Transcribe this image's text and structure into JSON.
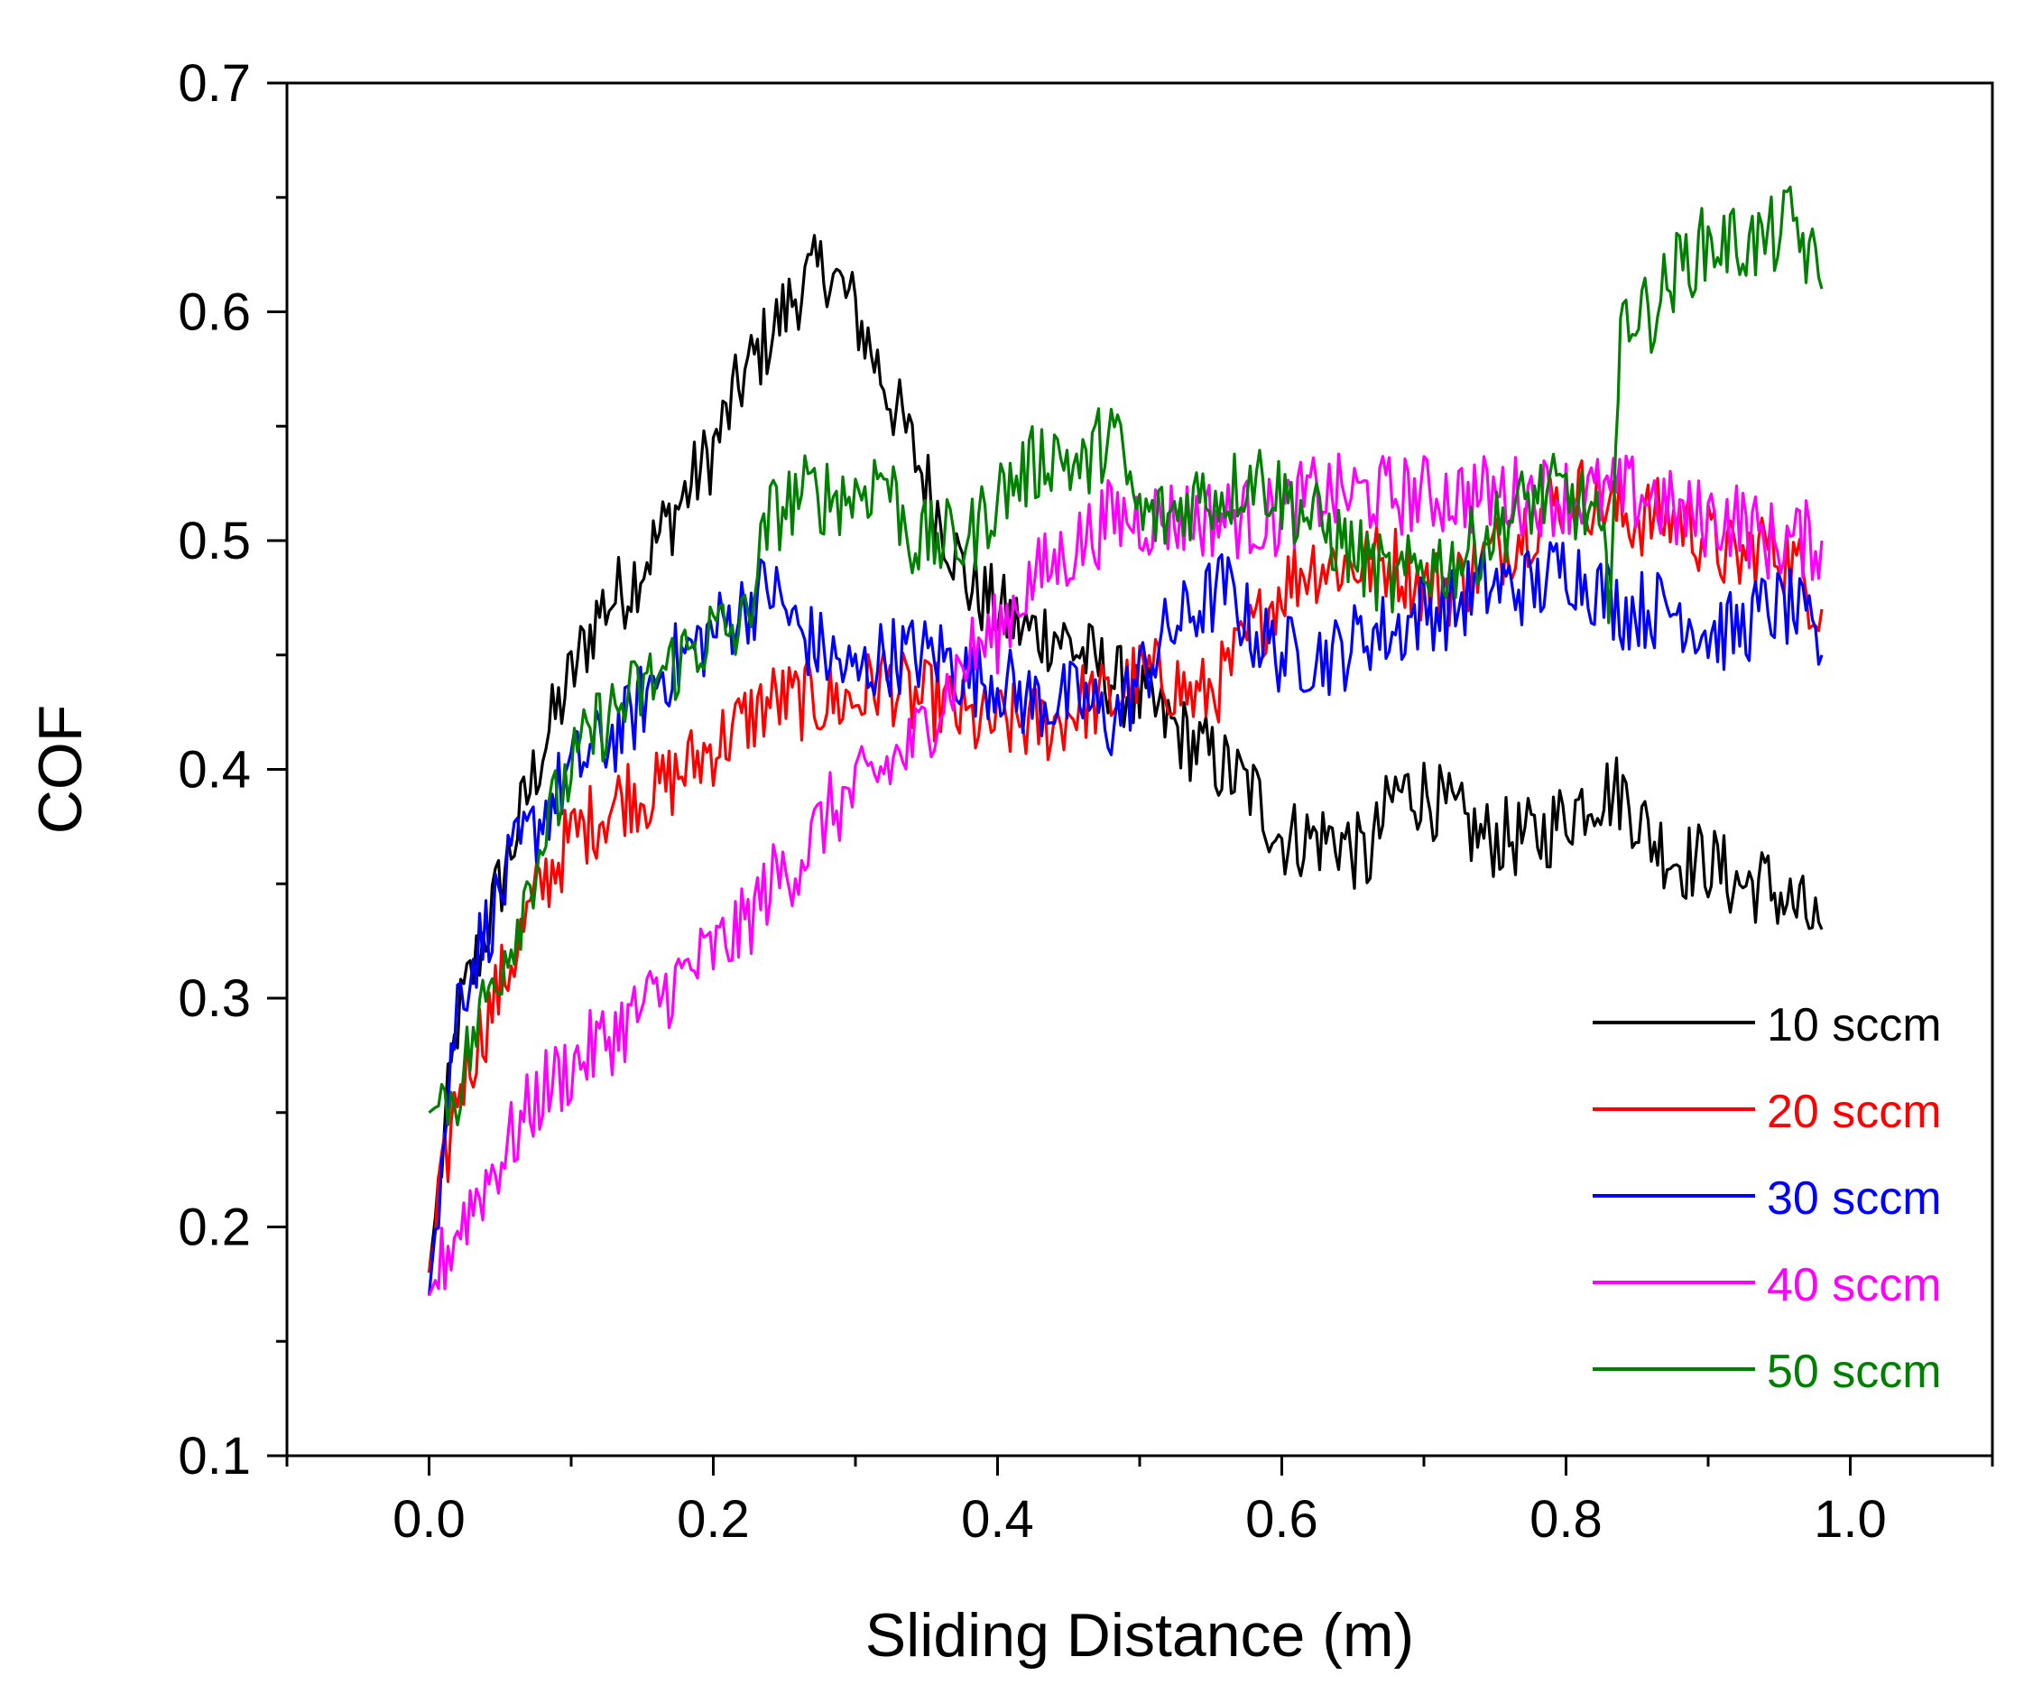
{
  "chart_data": {
    "type": "line",
    "title": "",
    "xlabel": "Sliding Distance (m)",
    "ylabel": "COF",
    "xlim": [
      -0.1,
      1.1
    ],
    "ylim": [
      0.1,
      0.7
    ],
    "x_ticks": [
      "0.0",
      "0.2",
      "0.4",
      "0.6",
      "0.8",
      "1.0"
    ],
    "x_tick_values": [
      0.0,
      0.2,
      0.4,
      0.6,
      0.8,
      1.0
    ],
    "y_ticks": [
      "0.1",
      "0.2",
      "0.3",
      "0.4",
      "0.5",
      "0.6",
      "0.7"
    ],
    "y_tick_values": [
      0.1,
      0.2,
      0.3,
      0.4,
      0.5,
      0.6,
      0.7
    ],
    "grid": false,
    "legend_position": "bottom-right",
    "series": [
      {
        "name": "10 sccm",
        "color": "#000000",
        "x": [
          0.0,
          0.02,
          0.04,
          0.06,
          0.08,
          0.1,
          0.12,
          0.14,
          0.16,
          0.18,
          0.2,
          0.22,
          0.24,
          0.26,
          0.28,
          0.3,
          0.32,
          0.34,
          0.36,
          0.38,
          0.4,
          0.42,
          0.44,
          0.46,
          0.48,
          0.5,
          0.52,
          0.54,
          0.56,
          0.58,
          0.6,
          0.62,
          0.64,
          0.66,
          0.68,
          0.7,
          0.72,
          0.74,
          0.76,
          0.78,
          0.8,
          0.82,
          0.84,
          0.86,
          0.88,
          0.9,
          0.92,
          0.94,
          0.96,
          0.98
        ],
        "y": [
          0.18,
          0.29,
          0.33,
          0.37,
          0.41,
          0.44,
          0.47,
          0.48,
          0.5,
          0.52,
          0.54,
          0.57,
          0.59,
          0.61,
          0.62,
          0.6,
          0.57,
          0.54,
          0.51,
          0.48,
          0.47,
          0.46,
          0.46,
          0.45,
          0.44,
          0.43,
          0.42,
          0.41,
          0.4,
          0.39,
          0.37,
          0.37,
          0.37,
          0.36,
          0.39,
          0.39,
          0.38,
          0.37,
          0.37,
          0.37,
          0.38,
          0.39,
          0.39,
          0.37,
          0.36,
          0.36,
          0.35,
          0.35,
          0.34,
          0.33
        ]
      },
      {
        "name": "20 sccm",
        "color": "#ff0000",
        "x": [
          0.0,
          0.02,
          0.04,
          0.06,
          0.08,
          0.1,
          0.12,
          0.14,
          0.16,
          0.18,
          0.2,
          0.22,
          0.24,
          0.26,
          0.28,
          0.3,
          0.32,
          0.34,
          0.36,
          0.38,
          0.4,
          0.42,
          0.44,
          0.46,
          0.48,
          0.5,
          0.52,
          0.54,
          0.56,
          0.58,
          0.6,
          0.62,
          0.64,
          0.66,
          0.68,
          0.7,
          0.72,
          0.74,
          0.76,
          0.78,
          0.8,
          0.82,
          0.84,
          0.86,
          0.88,
          0.9,
          0.92,
          0.94,
          0.96,
          0.98
        ],
        "y": [
          0.18,
          0.26,
          0.29,
          0.32,
          0.35,
          0.37,
          0.38,
          0.39,
          0.39,
          0.4,
          0.41,
          0.42,
          0.43,
          0.43,
          0.43,
          0.43,
          0.44,
          0.43,
          0.43,
          0.42,
          0.42,
          0.42,
          0.42,
          0.43,
          0.43,
          0.44,
          0.44,
          0.43,
          0.44,
          0.46,
          0.48,
          0.49,
          0.49,
          0.49,
          0.49,
          0.48,
          0.48,
          0.49,
          0.5,
          0.51,
          0.52,
          0.52,
          0.51,
          0.51,
          0.51,
          0.5,
          0.49,
          0.5,
          0.49,
          0.47
        ]
      },
      {
        "name": "30 sccm",
        "color": "#0000ff",
        "x": [
          0.0,
          0.02,
          0.04,
          0.06,
          0.08,
          0.1,
          0.12,
          0.14,
          0.16,
          0.18,
          0.2,
          0.22,
          0.24,
          0.26,
          0.28,
          0.3,
          0.32,
          0.34,
          0.36,
          0.38,
          0.4,
          0.42,
          0.44,
          0.46,
          0.48,
          0.5,
          0.52,
          0.54,
          0.56,
          0.58,
          0.6,
          0.62,
          0.64,
          0.66,
          0.68,
          0.7,
          0.72,
          0.74,
          0.76,
          0.78,
          0.8,
          0.82,
          0.84,
          0.86,
          0.88,
          0.9,
          0.92,
          0.94,
          0.96,
          0.98
        ],
        "y": [
          0.17,
          0.3,
          0.33,
          0.36,
          0.38,
          0.4,
          0.41,
          0.42,
          0.44,
          0.45,
          0.46,
          0.47,
          0.48,
          0.46,
          0.45,
          0.44,
          0.45,
          0.45,
          0.45,
          0.44,
          0.44,
          0.43,
          0.43,
          0.43,
          0.42,
          0.44,
          0.46,
          0.47,
          0.48,
          0.46,
          0.45,
          0.45,
          0.45,
          0.46,
          0.46,
          0.47,
          0.47,
          0.48,
          0.48,
          0.48,
          0.49,
          0.48,
          0.47,
          0.47,
          0.47,
          0.46,
          0.46,
          0.47,
          0.47,
          0.45
        ]
      },
      {
        "name": "40 sccm",
        "color": "#ff00ff",
        "x": [
          0.0,
          0.02,
          0.04,
          0.06,
          0.08,
          0.1,
          0.12,
          0.14,
          0.16,
          0.18,
          0.2,
          0.22,
          0.24,
          0.26,
          0.28,
          0.3,
          0.32,
          0.34,
          0.36,
          0.38,
          0.4,
          0.42,
          0.44,
          0.46,
          0.48,
          0.5,
          0.52,
          0.54,
          0.56,
          0.58,
          0.6,
          0.62,
          0.64,
          0.66,
          0.68,
          0.7,
          0.72,
          0.74,
          0.76,
          0.78,
          0.8,
          0.82,
          0.84,
          0.86,
          0.88,
          0.9,
          0.92,
          0.94,
          0.96,
          0.98
        ],
        "y": [
          0.17,
          0.2,
          0.22,
          0.24,
          0.26,
          0.27,
          0.28,
          0.29,
          0.3,
          0.31,
          0.32,
          0.33,
          0.35,
          0.36,
          0.38,
          0.39,
          0.4,
          0.41,
          0.43,
          0.45,
          0.46,
          0.48,
          0.49,
          0.5,
          0.51,
          0.51,
          0.51,
          0.51,
          0.51,
          0.51,
          0.51,
          0.52,
          0.52,
          0.52,
          0.52,
          0.52,
          0.52,
          0.52,
          0.52,
          0.52,
          0.52,
          0.52,
          0.52,
          0.52,
          0.51,
          0.51,
          0.51,
          0.5,
          0.5,
          0.5
        ]
      },
      {
        "name": "50 sccm",
        "color": "#008000",
        "x": [
          0.0,
          0.02,
          0.04,
          0.06,
          0.08,
          0.1,
          0.12,
          0.14,
          0.16,
          0.18,
          0.2,
          0.22,
          0.24,
          0.26,
          0.28,
          0.3,
          0.32,
          0.34,
          0.36,
          0.38,
          0.4,
          0.42,
          0.44,
          0.46,
          0.48,
          0.5,
          0.52,
          0.54,
          0.56,
          0.58,
          0.6,
          0.62,
          0.64,
          0.66,
          0.68,
          0.7,
          0.72,
          0.74,
          0.76,
          0.78,
          0.8,
          0.82,
          0.83,
          0.84,
          0.86,
          0.88,
          0.9,
          0.92,
          0.94,
          0.96,
          0.98
        ],
        "y": [
          0.25,
          0.26,
          0.3,
          0.33,
          0.37,
          0.4,
          0.42,
          0.43,
          0.44,
          0.45,
          0.46,
          0.46,
          0.51,
          0.52,
          0.52,
          0.52,
          0.53,
          0.5,
          0.5,
          0.5,
          0.52,
          0.53,
          0.54,
          0.53,
          0.55,
          0.51,
          0.51,
          0.52,
          0.52,
          0.53,
          0.52,
          0.51,
          0.5,
          0.49,
          0.48,
          0.49,
          0.49,
          0.5,
          0.51,
          0.52,
          0.52,
          0.51,
          0.48,
          0.6,
          0.6,
          0.62,
          0.63,
          0.63,
          0.63,
          0.64,
          0.61
        ]
      }
    ]
  }
}
